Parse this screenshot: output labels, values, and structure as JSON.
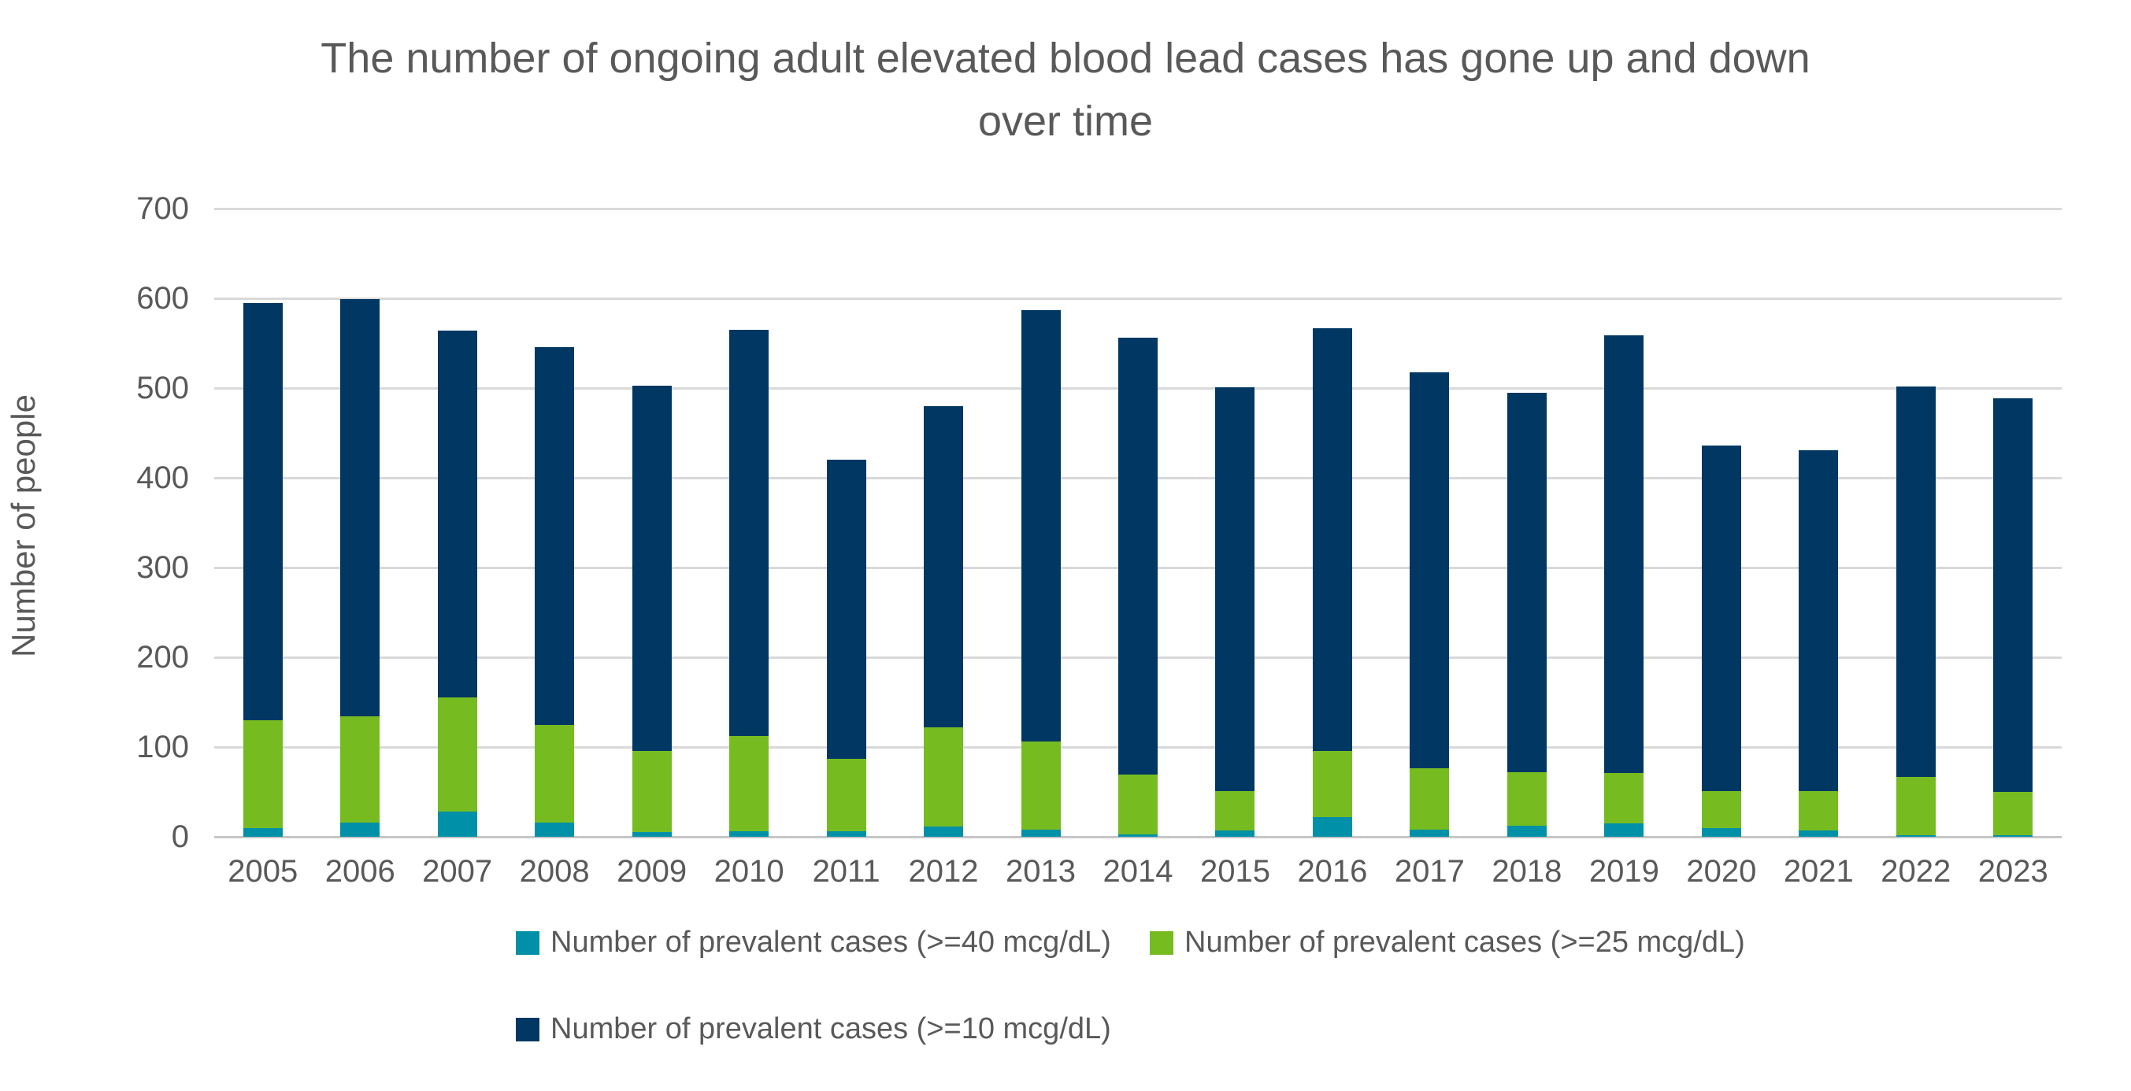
{
  "chart_data": {
    "type": "bar",
    "stacked": true,
    "title_lines": [
      "The number of ongoing adult elevated blood lead cases has gone up and down",
      "over time"
    ],
    "title": "The number of ongoing adult elevated blood lead cases has gone up and down over time",
    "ylabel": "Number of people",
    "ylim": [
      0,
      700
    ],
    "y_ticks": [
      0,
      100,
      200,
      300,
      400,
      500,
      600,
      700
    ],
    "grid": "horizontal",
    "legend_position": "bottom",
    "categories": [
      "2005",
      "2006",
      "2007",
      "2008",
      "2009",
      "2010",
      "2011",
      "2012",
      "2013",
      "2014",
      "2015",
      "2016",
      "2017",
      "2018",
      "2019",
      "2020",
      "2021",
      "2022",
      "2023"
    ],
    "series": [
      {
        "name": "Number of prevalent cases (>=40 mcg/dL)",
        "color": "#0090A7",
        "values": [
          10,
          16,
          28,
          16,
          5,
          6,
          6,
          11,
          8,
          3,
          7,
          22,
          8,
          12,
          15,
          10,
          7,
          2,
          2
        ]
      },
      {
        "name": "Number of prevalent cases (>=25 mcg/dL)",
        "color": "#76BC21",
        "values": [
          120,
          118,
          127,
          109,
          91,
          106,
          81,
          111,
          98,
          66,
          44,
          74,
          68,
          60,
          56,
          41,
          44,
          65,
          48
        ]
      },
      {
        "name": "Number of prevalent cases (>=10 mcg/dL)",
        "color": "#003763",
        "values": [
          465,
          465,
          409,
          421,
          407,
          453,
          333,
          358,
          481,
          487,
          450,
          471,
          442,
          423,
          488,
          385,
          380,
          435,
          439
        ]
      }
    ],
    "totals": [
      595,
      599,
      564,
      546,
      503,
      565,
      420,
      480,
      587,
      556,
      501,
      567,
      518,
      495,
      559,
      436,
      431,
      502,
      489
    ]
  },
  "colors": {
    "text": "#595959",
    "gridline": "#D9D9D9",
    "baseline": "#C6C6C6",
    "background": "#FFFFFF"
  }
}
